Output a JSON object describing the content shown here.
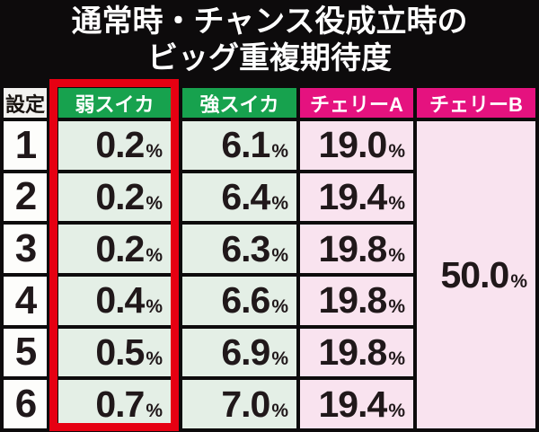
{
  "title": {
    "line1": "通常時・チャンス役成立時の",
    "line2": "ビッグ重複期待度"
  },
  "table": {
    "percent_sign": "%",
    "columns": {
      "setting": "設定",
      "weak_suika": "弱スイカ",
      "strong_suika": "強スイカ",
      "cherry_a": "チェリーA",
      "cherry_b": "チェリーB"
    },
    "rows": [
      {
        "setting": "1",
        "weak": "0.2",
        "strong": "6.1",
        "cherry_a": "19.0"
      },
      {
        "setting": "2",
        "weak": "0.2",
        "strong": "6.4",
        "cherry_a": "19.4"
      },
      {
        "setting": "3",
        "weak": "0.2",
        "strong": "6.3",
        "cherry_a": "19.8"
      },
      {
        "setting": "4",
        "weak": "0.4",
        "strong": "6.6",
        "cherry_a": "19.8"
      },
      {
        "setting": "5",
        "weak": "0.5",
        "strong": "6.9",
        "cherry_a": "19.8"
      },
      {
        "setting": "6",
        "weak": "0.7",
        "strong": "7.0",
        "cherry_a": "19.4"
      }
    ],
    "cherry_b_value": "50.0"
  },
  "colors": {
    "background": "#0d0b0c",
    "title_text": "#ffffff",
    "header_green": "#17a24e",
    "header_magenta": "#e5127f",
    "cell_light_green": "#e4efe6",
    "cell_light_pink": "#f9e3ef",
    "setting_cell_white": "#fdfdfb",
    "highlight_red_frame": "#e60012",
    "value_text": "#20181a"
  },
  "chart_data": {
    "type": "table",
    "title": "通常時・チャンス役成立時のビッグ重複期待度",
    "columns": [
      "設定",
      "弱スイカ",
      "強スイカ",
      "チェリーA",
      "チェリーB"
    ],
    "rows": [
      [
        "1",
        "0.2%",
        "6.1%",
        "19.0%",
        "50.0%"
      ],
      [
        "2",
        "0.2%",
        "6.4%",
        "19.4%",
        "50.0%"
      ],
      [
        "3",
        "0.2%",
        "6.3%",
        "19.8%",
        "50.0%"
      ],
      [
        "4",
        "0.4%",
        "6.6%",
        "19.8%",
        "50.0%"
      ],
      [
        "5",
        "0.5%",
        "6.9%",
        "19.8%",
        "50.0%"
      ],
      [
        "6",
        "0.7%",
        "7.0%",
        "19.4%",
        "50.0%"
      ]
    ],
    "merged_cells": [
      {
        "column": "チェリーB",
        "value": "50.0%",
        "spans_rows": [
          "1",
          "2",
          "3",
          "4",
          "5",
          "6"
        ]
      }
    ],
    "layout_hints": {
      "highlighted_column": "弱スイカ",
      "highlight_style": "red frame around entire column including header",
      "header_colors": {
        "弱スイカ": "green",
        "強スイカ": "green",
        "チェリーA": "magenta",
        "チェリーB": "magenta"
      }
    }
  }
}
